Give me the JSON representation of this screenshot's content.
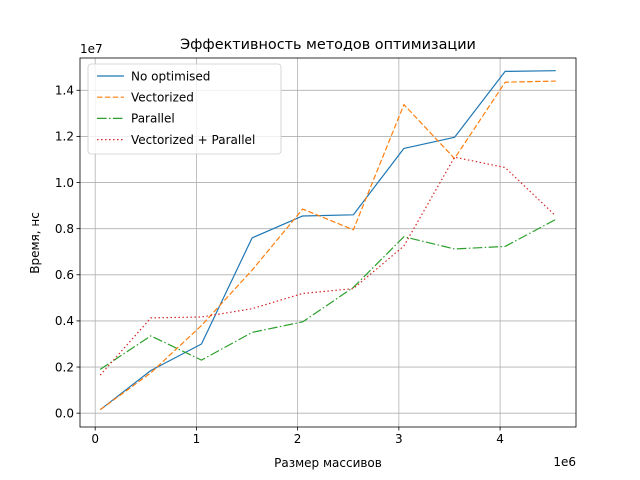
{
  "chart_data": {
    "type": "line",
    "title": "Эффективность методов оптимизации",
    "xlabel": "Размер массивов",
    "ylabel": "Время, нс",
    "x_offset_label": "1e6",
    "y_offset_label": "1e7",
    "xlim": [
      -150000,
      4750000
    ],
    "ylim": [
      -600000,
      15400000
    ],
    "x_ticks": [
      0,
      1000000,
      2000000,
      3000000,
      4000000
    ],
    "x_tick_labels": [
      "0",
      "1",
      "2",
      "3",
      "4"
    ],
    "y_ticks": [
      0,
      2000000,
      4000000,
      6000000,
      8000000,
      10000000,
      12000000,
      14000000
    ],
    "y_tick_labels": [
      "0.0",
      "0.2",
      "0.4",
      "0.6",
      "0.8",
      "1.0",
      "1.2",
      "1.4"
    ],
    "grid": true,
    "legend_position": "top-left",
    "x": [
      50000,
      550000,
      1050000,
      1550000,
      2050000,
      2550000,
      3050000,
      3550000,
      4050000,
      4550000
    ],
    "series": [
      {
        "name": "No optimised",
        "color": "#1f77b4",
        "dash": "solid",
        "values": [
          150000,
          1850000,
          3000000,
          7600000,
          8550000,
          8600000,
          11480000,
          11960000,
          14820000,
          14850000
        ]
      },
      {
        "name": "Vectorized",
        "color": "#ff7f0e",
        "dash": "dashed",
        "values": [
          150000,
          1750000,
          3800000,
          6200000,
          8850000,
          7950000,
          13380000,
          11040000,
          14350000,
          14400000
        ]
      },
      {
        "name": "Parallel",
        "color": "#2ca02c",
        "dash": "dashdot",
        "values": [
          1900000,
          3350000,
          2300000,
          3500000,
          3960000,
          5450000,
          7650000,
          7120000,
          7230000,
          8400000
        ]
      },
      {
        "name": "Vectorized + Parallel",
        "color": "#d62728",
        "dash": "dotted",
        "values": [
          1650000,
          4130000,
          4170000,
          4530000,
          5190000,
          5400000,
          7250000,
          11100000,
          10650000,
          8550000
        ]
      }
    ]
  }
}
